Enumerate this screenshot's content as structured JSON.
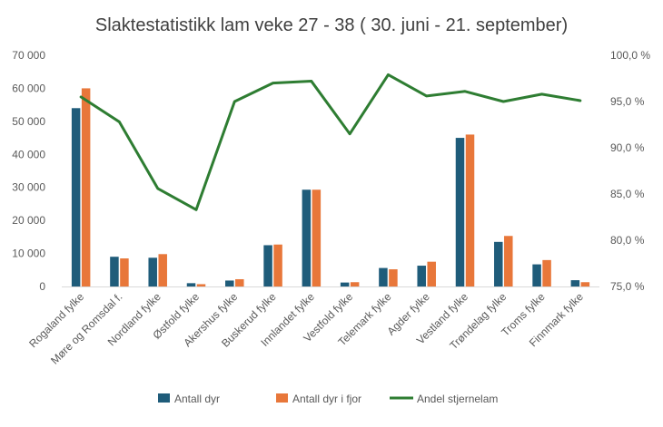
{
  "chart_data": {
    "type": "bar",
    "title": "Slaktestatistikk lam veke 27 - 38 ( 30. juni - 21. september)",
    "categories": [
      "Rogaland fylke",
      "Møre og Romsdal f.",
      "Nordland fylke",
      "Østfold fylke",
      "Akershus fylke",
      "Buskerud fylke",
      "Innlandet fylke",
      "Vestfold fylke",
      "Telemark fylke",
      "Agder fylke",
      "Vestland fylke",
      "Trøndelag fylke",
      "Troms fylke",
      "Finnmark fylke"
    ],
    "series": [
      {
        "name": "Antall dyr",
        "kind": "bar",
        "axis": "left",
        "color": "#1f5c7a",
        "values": [
          54000,
          9000,
          8700,
          1000,
          1800,
          12500,
          29300,
          1200,
          5600,
          6300,
          45000,
          13500,
          6700,
          1900
        ]
      },
      {
        "name": "Antall dyr i fjor",
        "kind": "bar",
        "axis": "left",
        "color": "#e8773a",
        "values": [
          60000,
          8500,
          9800,
          700,
          2200,
          12700,
          29300,
          1300,
          5200,
          7500,
          46000,
          15300,
          8000,
          1300
        ]
      },
      {
        "name": "Andel stjernelam",
        "kind": "line",
        "axis": "right",
        "color": "#2e7d32",
        "values": [
          95.5,
          92.8,
          85.6,
          83.3,
          95.0,
          97.0,
          97.2,
          91.5,
          97.9,
          95.6,
          96.1,
          95.0,
          95.8,
          95.1
        ]
      }
    ],
    "y_left": {
      "min": 0,
      "max": 70000,
      "ticks": [
        "0",
        "10 000",
        "20 000",
        "30 000",
        "40 000",
        "50 000",
        "60 000",
        "70 000"
      ]
    },
    "y_right": {
      "min": 75,
      "max": 100,
      "ticks": [
        "75,0 %",
        "80,0 %",
        "85,0 %",
        "90,0 %",
        "95,0 %",
        "100,0 %"
      ]
    },
    "legend": {
      "position": "bottom"
    }
  }
}
